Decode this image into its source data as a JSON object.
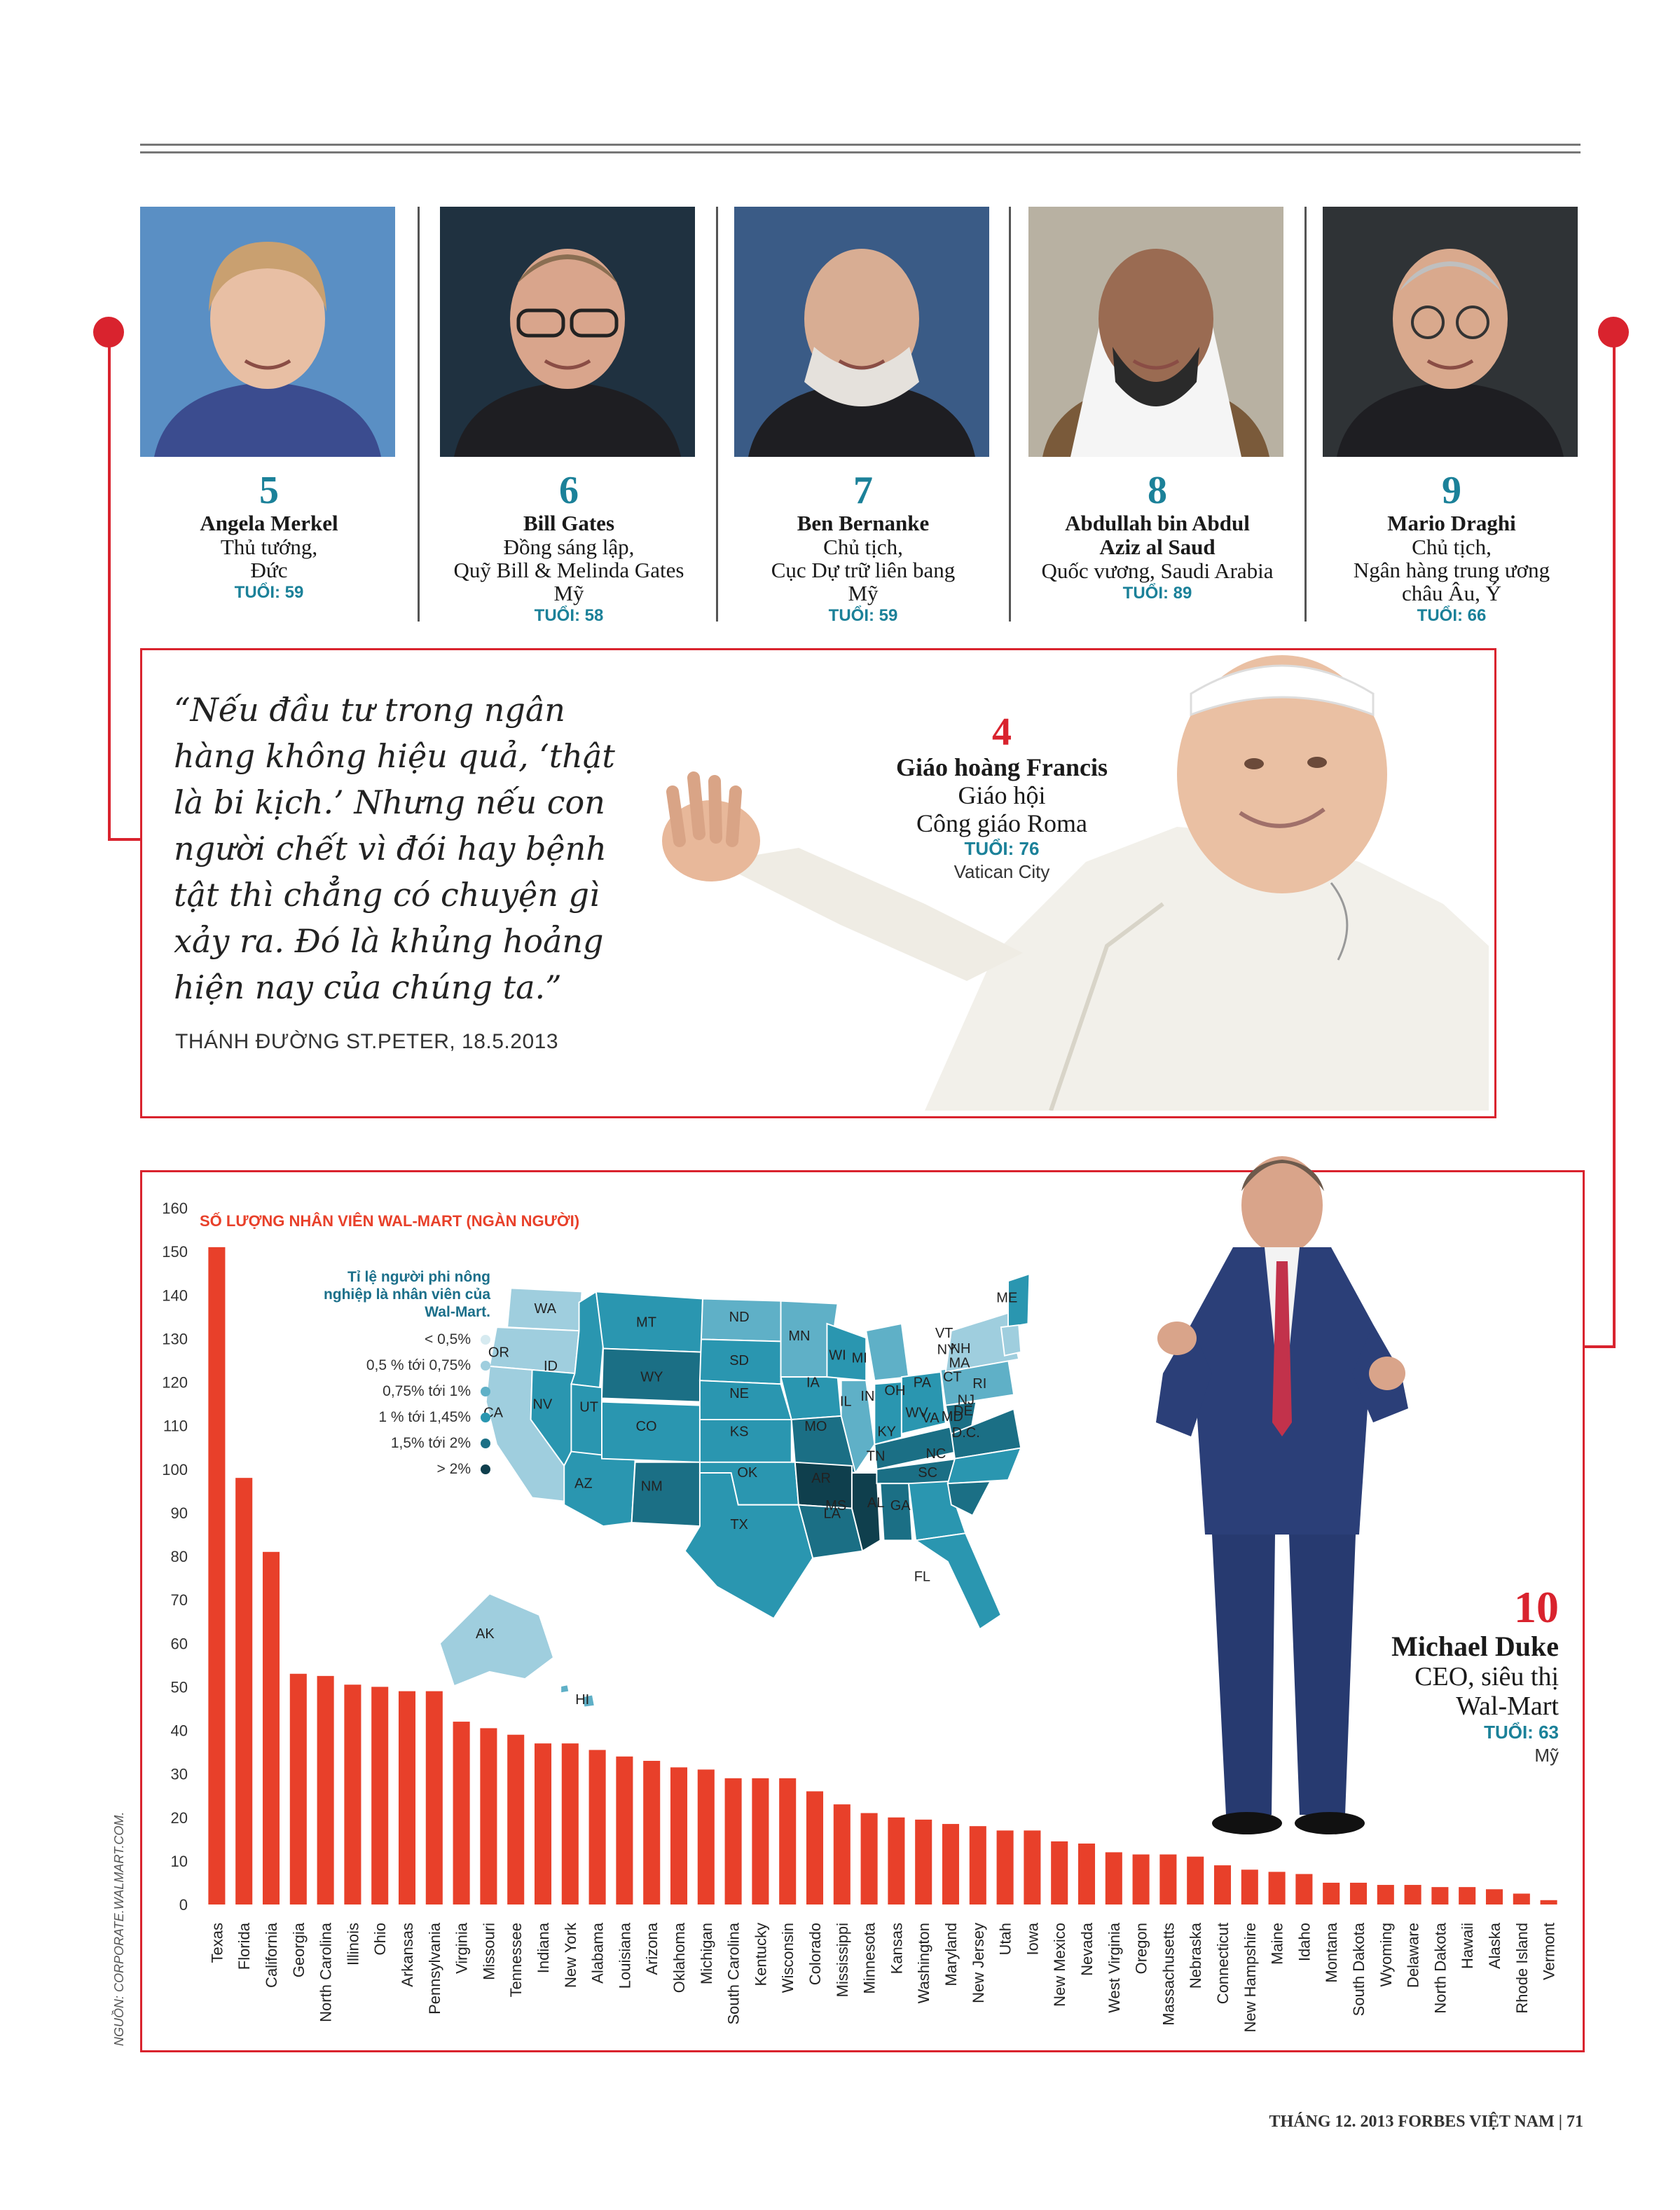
{
  "people": [
    {
      "rank": "5",
      "name": [
        "Angela Merkel"
      ],
      "lines": [
        "Thủ tướng,",
        "Đức"
      ],
      "age": "TUỔI: 59"
    },
    {
      "rank": "6",
      "name": [
        "Bill Gates"
      ],
      "lines": [
        "Đồng sáng lập,",
        "Quỹ Bill & Melinda Gates",
        "Mỹ"
      ],
      "age": "TUỔI: 58"
    },
    {
      "rank": "7",
      "name": [
        "Ben Bernanke"
      ],
      "lines": [
        "Chủ tịch,",
        "Cục Dự trữ liên bang",
        "Mỹ"
      ],
      "age": "TUỔI: 59"
    },
    {
      "rank": "8",
      "name": [
        "Abdullah bin Abdul",
        "Aziz al Saud"
      ],
      "lines": [
        "Quốc vương, Saudi Arabia"
      ],
      "age": "TUỔI: 89"
    },
    {
      "rank": "9",
      "name": [
        "Mario Draghi"
      ],
      "lines": [
        "Chủ tịch,",
        "Ngân hàng trung ương",
        "châu Âu, Ý"
      ],
      "age": "TUỔI: 66"
    }
  ],
  "pope": {
    "quote": "“Nếu đầu tư trong ngân hàng không hiệu quả, ‘thật là bi kịch.’ Nhưng nếu con người chết vì đói hay bệnh tật thì chẳng có chuyện gì xảy ra. Đó là khủng hoảng hiện nay của chúng ta.”",
    "quote_lines": [
      "“Nếu đầu tư trong ngân",
      "hàng không hiệu quả, ‘thật",
      "là bi kịch.’ Nhưng nếu con",
      "người chết vì đói hay bệnh",
      "tật thì chẳng có chuyện gì",
      "xảy ra. Đó là khủng hoảng",
      "hiện nay của chúng ta.”"
    ],
    "source": "THÁNH ĐƯỜNG ST.PETER, 18.5.2013",
    "rank": "4",
    "name": "Giáo hoàng Francis",
    "line1": "Giáo hội",
    "line2": "Công giáo Roma",
    "age": "TUỔI: 76",
    "place": "Vatican City"
  },
  "duke": {
    "rank": "10",
    "name": "Michael Duke",
    "line1": "CEO, siêu thị",
    "line2": "Wal-Mart",
    "age": "TUỔI: 63",
    "place": "Mỹ"
  },
  "map": {
    "legend_title": [
      "Tỉ lệ người phi nông",
      "nghiệp là nhân viên của",
      "Wal-Mart."
    ],
    "legend": [
      {
        "label": "< 0,5%",
        "color": "#d6eaf0"
      },
      {
        "label": "0,5 % tới 0,75%",
        "color": "#9fcede"
      },
      {
        "label": "0,75% tới 1%",
        "color": "#5fb0c7"
      },
      {
        "label": "1 % tới 1,45%",
        "color": "#2a96b0"
      },
      {
        "label": "1,5% tới 2%",
        "color": "#1b6f85"
      },
      {
        "label": "> 2%",
        "color": "#0f3f4d"
      }
    ],
    "state_labels": [
      "WA",
      "OR",
      "CA",
      "NV",
      "ID",
      "MT",
      "WY",
      "UT",
      "AZ",
      "CO",
      "NM",
      "ND",
      "SD",
      "NE",
      "KS",
      "OK",
      "TX",
      "MN",
      "IA",
      "MO",
      "AR",
      "LA",
      "WI",
      "IL",
      "MS",
      "MI",
      "IN",
      "KY",
      "TN",
      "AL",
      "OH",
      "GA",
      "FL",
      "PA",
      "NY",
      "WV",
      "VA",
      "NC",
      "SC",
      "ME",
      "VT",
      "NH",
      "MA",
      "CT",
      "RI",
      "NJ",
      "DE",
      "MD",
      "D.C.",
      "AK",
      "HI"
    ]
  },
  "chart_data": {
    "type": "bar",
    "title": "SỐ LƯỢNG NHÂN VIÊN WAL-MART (NGÀN NGƯỜI)",
    "xlabel": "",
    "ylabel": "",
    "ylim": [
      0,
      160
    ],
    "yticks": [
      0,
      10,
      20,
      30,
      40,
      50,
      60,
      70,
      80,
      90,
      100,
      110,
      120,
      130,
      140,
      150,
      160
    ],
    "bar_color": "#e8402a",
    "categories": [
      "Texas",
      "Florida",
      "California",
      "Georgia",
      "North Carolina",
      "Illinois",
      "Ohio",
      "Arkansas",
      "Pennsylvania",
      "Virginia",
      "Missouri",
      "Tennessee",
      "Indiana",
      "New York",
      "Alabama",
      "Louisiana",
      "Arizona",
      "Oklahoma",
      "Michigan",
      "South Carolina",
      "Kentucky",
      "Wisconsin",
      "Colorado",
      "Mississippi",
      "Minnesota",
      "Kansas",
      "Washington",
      "Maryland",
      "New Jersey",
      "Utah",
      "Iowa",
      "New Mexico",
      "Nevada",
      "West Virginia",
      "Oregon",
      "Massachusetts",
      "Nebraska",
      "Connecticut",
      "New Hampshire",
      "Maine",
      "Idaho",
      "Montana",
      "South Dakota",
      "Wyoming",
      "Delaware",
      "North Dakota",
      "Hawaii",
      "Alaska",
      "Rhode Island",
      "Vermont"
    ],
    "values": [
      151,
      98,
      81,
      53,
      52.5,
      50.5,
      50,
      49,
      49,
      42,
      40.5,
      39,
      37,
      37,
      35.5,
      34,
      33,
      31.5,
      31,
      29,
      29,
      29,
      26,
      23,
      21,
      20,
      19.5,
      18.5,
      18,
      17,
      17,
      14.5,
      14,
      12,
      11.5,
      11.5,
      11,
      9,
      8,
      7.5,
      7,
      5,
      5,
      4.5,
      4.5,
      4,
      4,
      3.5,
      2.5,
      1
    ]
  },
  "source": "NGUỒN: CORPORATE.WALMART.COM.",
  "footer": "THÁNG 12. 2013   FORBES VIỆT NAM   |   71"
}
